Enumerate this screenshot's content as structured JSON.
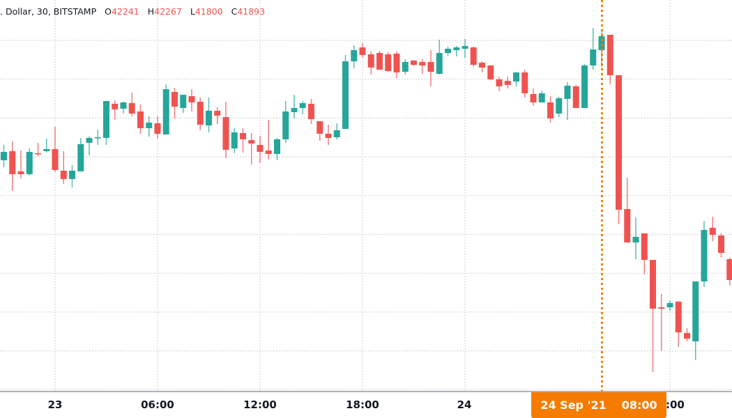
{
  "legend": {
    "symbol": ". Dollar, 30, BITSTAMP",
    "o_label": "O",
    "o": "42241",
    "h_label": "H",
    "h": "42267",
    "l_label": "L",
    "l": "41800",
    "c_label": "C",
    "c": "41893"
  },
  "crosshair": {
    "date": "24 Sep '21",
    "time": "08:00",
    "color": "#f57c00"
  },
  "chart_data": {
    "type": "candlestick",
    "start": "22 Sep '21 21:00",
    "interval": "30m",
    "ylim": [
      40037,
      46556
    ],
    "grid": true,
    "colors": {
      "up": "#26a69a",
      "down": "#ef5350"
    },
    "x_ticks": [
      {
        "label": "23",
        "index": 6
      },
      {
        "label": "06:00",
        "index": 18
      },
      {
        "label": "12:00",
        "index": 30
      },
      {
        "label": "18:00",
        "index": 42
      },
      {
        "label": "24",
        "index": 54
      },
      {
        "label": "06:00",
        "index": 78
      }
    ],
    "ohlc": [
      [
        43888,
        44143,
        43772,
        44027
      ],
      [
        44039,
        44201,
        43378,
        43656
      ],
      [
        43702,
        44050,
        43586,
        43656
      ],
      [
        43656,
        44085,
        43633,
        44027
      ],
      [
        44004,
        44178,
        43958,
        43992
      ],
      [
        44039,
        44248,
        44016,
        44074
      ],
      [
        44074,
        44445,
        43691,
        43726
      ],
      [
        43714,
        44039,
        43494,
        43575
      ],
      [
        43575,
        43807,
        43436,
        43714
      ],
      [
        43702,
        44259,
        43702,
        44155
      ],
      [
        44178,
        44282,
        43969,
        44259
      ],
      [
        44259,
        44398,
        44143,
        44271
      ],
      [
        44259,
        44874,
        44143,
        44874
      ],
      [
        44828,
        44886,
        44561,
        44735
      ],
      [
        44746,
        44862,
        44665,
        44851
      ],
      [
        44839,
        45013,
        44619,
        44665
      ],
      [
        44700,
        44816,
        44329,
        44422
      ],
      [
        44422,
        44619,
        44282,
        44514
      ],
      [
        44503,
        44619,
        44248,
        44329
      ],
      [
        44317,
        45152,
        44317,
        45071
      ],
      [
        45025,
        45094,
        44584,
        44781
      ],
      [
        44758,
        44978,
        44677,
        44978
      ],
      [
        44955,
        45071,
        44700,
        44851
      ],
      [
        44862,
        44932,
        44387,
        44480
      ],
      [
        44468,
        44932,
        44352,
        44712
      ],
      [
        44712,
        44770,
        44491,
        44630
      ],
      [
        44607,
        44862,
        43923,
        44062
      ],
      [
        44085,
        44422,
        44004,
        44352
      ],
      [
        44340,
        44422,
        44016,
        44236
      ],
      [
        44224,
        44340,
        43818,
        44166
      ],
      [
        44143,
        44294,
        43842,
        44027
      ],
      [
        44050,
        44561,
        43900,
        43992
      ],
      [
        43992,
        44259,
        43888,
        44236
      ],
      [
        44236,
        44874,
        44178,
        44700
      ],
      [
        44688,
        44978,
        44584,
        44758
      ],
      [
        44758,
        44874,
        44654,
        44839
      ],
      [
        44828,
        44909,
        44491,
        44572
      ],
      [
        44538,
        44538,
        44213,
        44329
      ],
      [
        44329,
        44480,
        44143,
        44259
      ],
      [
        44271,
        44503,
        44236,
        44387
      ],
      [
        44410,
        45640,
        44410,
        45535
      ],
      [
        45535,
        45802,
        45419,
        45721
      ],
      [
        45767,
        45837,
        45593,
        45640
      ],
      [
        45651,
        45698,
        45315,
        45431
      ],
      [
        45674,
        45709,
        45396,
        45396
      ],
      [
        45651,
        45686,
        45361,
        45373
      ],
      [
        45663,
        45698,
        45257,
        45350
      ],
      [
        45361,
        45570,
        45315,
        45524
      ],
      [
        45547,
        45558,
        45454,
        45477
      ],
      [
        45524,
        45570,
        45326,
        45466
      ],
      [
        45524,
        45721,
        45118,
        45361
      ],
      [
        45326,
        45895,
        45315,
        45674
      ],
      [
        45674,
        45779,
        45628,
        45744
      ],
      [
        45721,
        45790,
        45616,
        45767
      ],
      [
        45744,
        45906,
        45593,
        45790
      ],
      [
        45767,
        45779,
        45442,
        45477
      ],
      [
        45512,
        45535,
        45350,
        45431
      ],
      [
        45466,
        45466,
        45222,
        45234
      ],
      [
        45234,
        45280,
        45036,
        45118
      ],
      [
        45210,
        45280,
        45083,
        45141
      ],
      [
        45199,
        45361,
        45118,
        45350
      ],
      [
        45350,
        45396,
        44932,
        45002
      ],
      [
        44990,
        45083,
        44793,
        44851
      ],
      [
        44851,
        45048,
        44851,
        45002
      ],
      [
        44851,
        44955,
        44514,
        44584
      ],
      [
        44665,
        44944,
        44607,
        44920
      ],
      [
        44909,
        45187,
        44561,
        45129
      ],
      [
        45118,
        45141,
        44758,
        44758
      ],
      [
        44758,
        45489,
        44758,
        45466
      ],
      [
        45466,
        46092,
        45396,
        45732
      ],
      [
        45721,
        46046,
        45442,
        45953
      ],
      [
        45976,
        45976,
        45152,
        45303
      ],
      [
        45303,
        45303,
        42821,
        43064
      ],
      [
        43076,
        43598,
        42519,
        42519
      ],
      [
        42519,
        42937,
        42241,
        42612
      ],
      [
        42670,
        42670,
        41986,
        42229
      ],
      [
        42229,
        42229,
        40362,
        41417
      ],
      [
        41440,
        41661,
        40710,
        41417
      ],
      [
        41440,
        41556,
        41382,
        41510
      ],
      [
        41533,
        41545,
        40779,
        41023
      ],
      [
        41011,
        41092,
        40872,
        40918
      ],
      [
        40872,
        41870,
        40559,
        41870
      ],
      [
        41870,
        42879,
        41777,
        42728
      ],
      [
        42763,
        42948,
        42542,
        42647
      ],
      [
        42635,
        42670,
        42264,
        42345
      ],
      [
        42241,
        42267,
        41800,
        41893
      ]
    ],
    "crosshair_index": 70
  }
}
